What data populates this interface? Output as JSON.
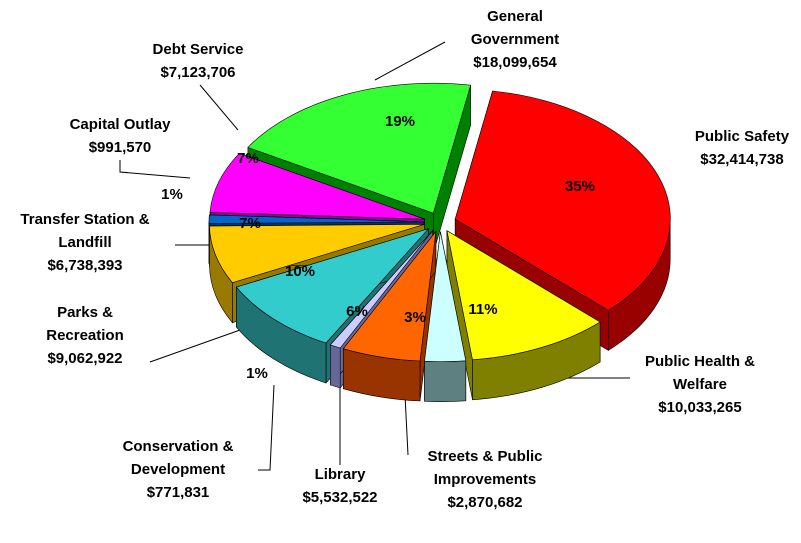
{
  "chart_data": {
    "type": "pie",
    "categories": [
      "Public Safety",
      "Public Health &\nWelfare",
      "Streets & Public\nImprovements",
      "Library",
      "Conservation &\nDevelopment",
      "Parks &\nRecreation",
      "Transfer Station &\nLandfill",
      "Capital Outlay",
      "Debt Service",
      "General\nGovernment"
    ],
    "values": [
      32414738,
      10033265,
      2870682,
      5532522,
      771831,
      9062922,
      6738393,
      991570,
      7123706,
      18099654
    ],
    "value_labels": [
      "$32,414,738",
      "$10,033,265",
      "$2,870,682",
      "$5,532,522",
      "$771,831",
      "$9,062,922",
      "$6,738,393",
      "$991,570",
      "$7,123,706",
      "$18,099,654"
    ],
    "percent_labels": [
      "35%",
      "11%",
      "3%",
      "6%",
      "1%",
      "10%",
      "7%",
      "1%",
      "7%",
      "19%"
    ],
    "colors": [
      "#ff0000",
      "#ffff00",
      "#ccffff",
      "#ff6600",
      "#ccccff",
      "#33cccc",
      "#ffcc00",
      "#0066cc",
      "#ff00ff",
      "#33ff33"
    ],
    "side_colors": [
      "#990000",
      "#808000",
      "#5f8080",
      "#993300",
      "#666699",
      "#1f7373",
      "#997a00",
      "#003366",
      "#990099",
      "#008000"
    ]
  }
}
